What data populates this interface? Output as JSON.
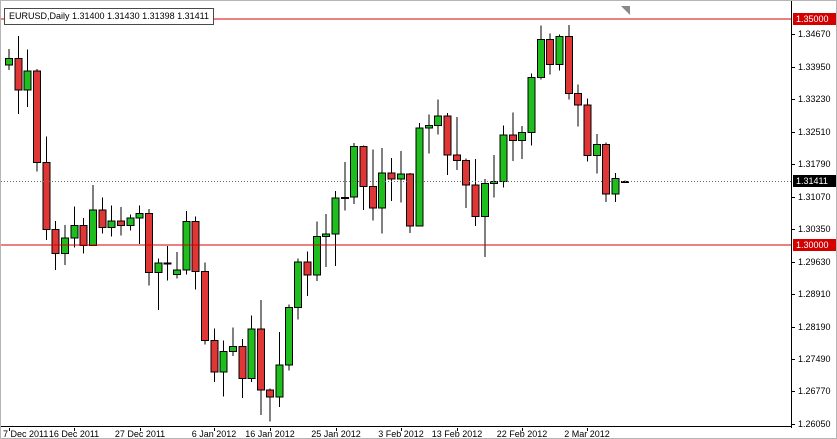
{
  "chart_header": {
    "text": "EURUSD,Daily 1.31400 1.31430 1.31398 1.31411"
  },
  "colors": {
    "bull": "#1FBE1F",
    "bear": "#E03636",
    "price_line": "#D40000",
    "current_price_line": "#6b6b6b",
    "current_price_badge": "#000000",
    "axis_text": "#000000"
  },
  "chart_data": {
    "type": "candlestick",
    "title": "EURUSD,Daily",
    "symbol": "EURUSD",
    "timeframe": "Daily",
    "price_max": 1.354,
    "price_min": 1.2598,
    "grid": false,
    "y_axis_labels": [
      "1.34670",
      "1.33950",
      "1.33230",
      "1.32510",
      "1.31790",
      "1.31070",
      "1.30350",
      "1.29630",
      "1.28910",
      "1.28190",
      "1.27490",
      "1.26770",
      "1.26050"
    ],
    "x_tick_labels": [
      {
        "index": 0,
        "label": "7 Dec 2011"
      },
      {
        "index": 7,
        "label": "16 Dec 2011"
      },
      {
        "index": 14,
        "label": "27 Dec 2011"
      },
      {
        "index": 22,
        "label": "6 Jan 2012"
      },
      {
        "index": 28,
        "label": "16 Jan 2012"
      },
      {
        "index": 35,
        "label": "25 Jan 2012"
      },
      {
        "index": 42,
        "label": "3 Feb 2012"
      },
      {
        "index": 48,
        "label": "13 Feb 2012"
      },
      {
        "index": 55,
        "label": "22 Feb 2012"
      },
      {
        "index": 62,
        "label": "2 Mar 2012"
      }
    ],
    "hlines": [
      {
        "name": "resistance-line",
        "price": 1.35,
        "label": "1.35000"
      },
      {
        "name": "support-line",
        "price": 1.3,
        "label": "1.30000"
      }
    ],
    "current_price": {
      "value": 1.31411,
      "label": "1.31411"
    },
    "candles": {
      "columns": [
        "date",
        "open",
        "high",
        "low",
        "close"
      ],
      "rows": [
        [
          "2011-12-07",
          1.3398,
          1.3434,
          1.3387,
          1.3413
        ],
        [
          "2011-12-08",
          1.3413,
          1.3463,
          1.329,
          1.3343
        ],
        [
          "2011-12-09",
          1.3343,
          1.3433,
          1.3306,
          1.3385
        ],
        [
          "2011-12-12",
          1.3385,
          1.339,
          1.3163,
          1.3183
        ],
        [
          "2011-12-13",
          1.3183,
          1.324,
          1.3012,
          1.3035
        ],
        [
          "2011-12-14",
          1.3035,
          1.3053,
          1.2945,
          1.2982
        ],
        [
          "2011-12-15",
          1.2982,
          1.3045,
          1.2956,
          1.3016
        ],
        [
          "2011-12-16",
          1.3016,
          1.3086,
          1.2995,
          1.3044
        ],
        [
          "2011-12-19",
          1.3044,
          1.306,
          1.2982,
          1.2999
        ],
        [
          "2011-12-20",
          1.2999,
          1.3133,
          1.2999,
          1.3078
        ],
        [
          "2011-12-21",
          1.3078,
          1.3106,
          1.3026,
          1.3039
        ],
        [
          "2011-12-22",
          1.3039,
          1.3088,
          1.3019,
          1.3054
        ],
        [
          "2011-12-23",
          1.3054,
          1.3084,
          1.3021,
          1.3044
        ],
        [
          "2011-12-26",
          1.3044,
          1.3068,
          1.3033,
          1.306
        ],
        [
          "2011-12-27",
          1.306,
          1.3088,
          1.3003,
          1.307
        ],
        [
          "2011-12-28",
          1.307,
          1.308,
          1.2911,
          1.2939
        ],
        [
          "2011-12-29",
          1.2939,
          1.2971,
          1.2857,
          1.2961
        ],
        [
          "2011-12-30",
          1.2961,
          1.2998,
          1.2922,
          1.2958
        ],
        [
          "2012-01-02",
          1.2935,
          1.2985,
          1.2926,
          1.2945
        ],
        [
          "2012-01-03",
          1.2945,
          1.3076,
          1.2935,
          1.3052
        ],
        [
          "2012-01-04",
          1.3052,
          1.3063,
          1.2902,
          1.2942
        ],
        [
          "2012-01-05",
          1.2942,
          1.2962,
          1.278,
          1.2789
        ],
        [
          "2012-01-06",
          1.2789,
          1.2816,
          1.2697,
          1.272
        ],
        [
          "2012-01-09",
          1.272,
          1.2789,
          1.2665,
          1.2765
        ],
        [
          "2012-01-10",
          1.2765,
          1.2818,
          1.2755,
          1.2776
        ],
        [
          "2012-01-11",
          1.2776,
          1.2793,
          1.2662,
          1.2705
        ],
        [
          "2012-01-12",
          1.2705,
          1.2845,
          1.2698,
          1.2815
        ],
        [
          "2012-01-13",
          1.2815,
          1.2879,
          1.2624,
          1.268
        ],
        [
          "2012-01-16",
          1.268,
          1.2683,
          1.261,
          1.2664
        ],
        [
          "2012-01-17",
          1.2664,
          1.2808,
          1.2642,
          1.2735
        ],
        [
          "2012-01-18",
          1.2735,
          1.2869,
          1.2723,
          1.2862
        ],
        [
          "2012-01-19",
          1.2862,
          1.2971,
          1.2836,
          1.2963
        ],
        [
          "2012-01-20",
          1.2963,
          1.2986,
          1.2888,
          1.2934
        ],
        [
          "2012-01-23",
          1.2934,
          1.3052,
          1.2921,
          1.3019
        ],
        [
          "2012-01-24",
          1.3019,
          1.3069,
          1.2952,
          1.3025
        ],
        [
          "2012-01-25",
          1.3025,
          1.312,
          1.2954,
          1.3104
        ],
        [
          "2012-01-26",
          1.3104,
          1.3184,
          1.3077,
          1.3106
        ],
        [
          "2012-01-27",
          1.3106,
          1.3226,
          1.3091,
          1.3218
        ],
        [
          "2012-01-30",
          1.3218,
          1.3221,
          1.3078,
          1.313
        ],
        [
          "2012-01-31",
          1.313,
          1.3212,
          1.3055,
          1.3082
        ],
        [
          "2012-02-01",
          1.3082,
          1.3215,
          1.3026,
          1.316
        ],
        [
          "2012-02-02",
          1.316,
          1.3193,
          1.3098,
          1.3146
        ],
        [
          "2012-02-03",
          1.3146,
          1.3208,
          1.3094,
          1.3158
        ],
        [
          "2012-02-06",
          1.3158,
          1.316,
          1.3027,
          1.3043
        ],
        [
          "2012-02-07",
          1.3043,
          1.327,
          1.3043,
          1.3259
        ],
        [
          "2012-02-08",
          1.3259,
          1.3289,
          1.3203,
          1.3265
        ],
        [
          "2012-02-09",
          1.3265,
          1.3322,
          1.3245,
          1.3286
        ],
        [
          "2012-02-10",
          1.3286,
          1.3292,
          1.3155,
          1.3199
        ],
        [
          "2012-02-13",
          1.3199,
          1.3283,
          1.3166,
          1.3187
        ],
        [
          "2012-02-14",
          1.3187,
          1.3192,
          1.3082,
          1.3133
        ],
        [
          "2012-02-15",
          1.3133,
          1.3191,
          1.3043,
          1.3064
        ],
        [
          "2012-02-16",
          1.3064,
          1.3146,
          1.2974,
          1.3136
        ],
        [
          "2012-02-17",
          1.3136,
          1.3199,
          1.3105,
          1.3141
        ],
        [
          "2012-02-20",
          1.3141,
          1.3265,
          1.3128,
          1.3244
        ],
        [
          "2012-02-21",
          1.3244,
          1.3293,
          1.3186,
          1.3232
        ],
        [
          "2012-02-22",
          1.3232,
          1.3264,
          1.3191,
          1.3249
        ],
        [
          "2012-02-23",
          1.3249,
          1.338,
          1.322,
          1.3371
        ],
        [
          "2012-02-24",
          1.3371,
          1.3486,
          1.3366,
          1.3455
        ],
        [
          "2012-02-27",
          1.3455,
          1.3468,
          1.3378,
          1.34
        ],
        [
          "2012-02-28",
          1.34,
          1.3466,
          1.3386,
          1.3462
        ],
        [
          "2012-02-29",
          1.3462,
          1.3487,
          1.3322,
          1.3336
        ],
        [
          "2012-03-01",
          1.3336,
          1.3355,
          1.3262,
          1.331
        ],
        [
          "2012-03-02",
          1.331,
          1.3324,
          1.3185,
          1.3198
        ],
        [
          "2012-03-05",
          1.3198,
          1.3246,
          1.3159,
          1.3223
        ],
        [
          "2012-03-06",
          1.3223,
          1.3227,
          1.3096,
          1.3113
        ],
        [
          "2012-03-07",
          1.3113,
          1.316,
          1.3095,
          1.3148
        ],
        [
          "2012-03-08",
          1.314,
          1.3143,
          1.314,
          1.3141
        ]
      ]
    }
  }
}
